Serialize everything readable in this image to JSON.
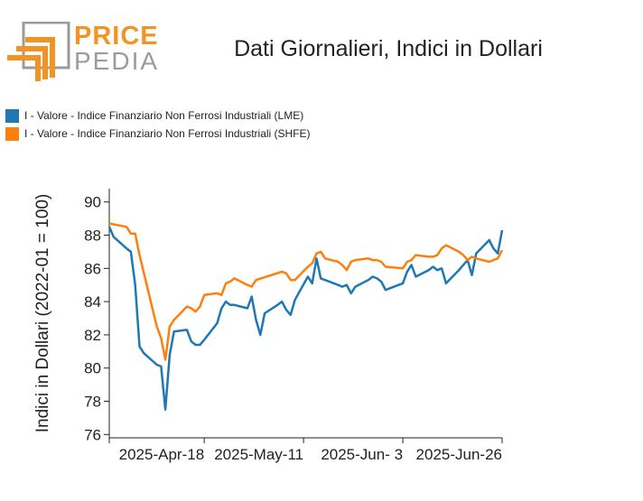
{
  "logo": {
    "line1": "PRICE",
    "line2": "PEDIA",
    "primary_color": "#f39324",
    "secondary_color": "#9b9b9b"
  },
  "chart_data": {
    "type": "line",
    "title": "Dati Giornalieri, Indici in Dollari",
    "ylabel": "Indici in Dollari (2022-01 = 100)",
    "xlabel": "",
    "ylim": [
      75.8,
      90.8
    ],
    "yticks": [
      76,
      78,
      80,
      82,
      84,
      86,
      88,
      90
    ],
    "xlim": [
      "2025-03-27",
      "2025-06-26"
    ],
    "xticks": [
      {
        "date": "2025-04-18",
        "label": "2025-Apr-18"
      },
      {
        "date": "2025-05-11",
        "label": "2025-May-11"
      },
      {
        "date": "2025-06-03",
        "label": "2025-Jun- 3"
      },
      {
        "date": "2025-06-26",
        "label": "2025-Jun-26"
      }
    ],
    "legend_position": "top-left",
    "series": [
      {
        "name": "I - Valore - Indice Finanziario Non Ferrosi Industriali (LME)",
        "color": "#1f77b4",
        "x": [
          "2025-03-27",
          "2025-03-28",
          "2025-03-31",
          "2025-04-01",
          "2025-04-02",
          "2025-04-03",
          "2025-04-04",
          "2025-04-07",
          "2025-04-08",
          "2025-04-09",
          "2025-04-10",
          "2025-04-11",
          "2025-04-14",
          "2025-04-15",
          "2025-04-16",
          "2025-04-17",
          "2025-04-18",
          "2025-04-21",
          "2025-04-22",
          "2025-04-23",
          "2025-04-24",
          "2025-04-25",
          "2025-04-28",
          "2025-04-29",
          "2025-04-30",
          "2025-05-01",
          "2025-05-02",
          "2025-05-05",
          "2025-05-06",
          "2025-05-07",
          "2025-05-08",
          "2025-05-09",
          "2025-05-12",
          "2025-05-13",
          "2025-05-14",
          "2025-05-15",
          "2025-05-16",
          "2025-05-19",
          "2025-05-20",
          "2025-05-21",
          "2025-05-22",
          "2025-05-23",
          "2025-05-26",
          "2025-05-27",
          "2025-05-28",
          "2025-05-29",
          "2025-05-30",
          "2025-06-02",
          "2025-06-03",
          "2025-06-04",
          "2025-06-05",
          "2025-06-06",
          "2025-06-09",
          "2025-06-10",
          "2025-06-11",
          "2025-06-12",
          "2025-06-13",
          "2025-06-16",
          "2025-06-17",
          "2025-06-18",
          "2025-06-19",
          "2025-06-20",
          "2025-06-23",
          "2025-06-24",
          "2025-06-25",
          "2025-06-26"
        ],
        "values": [
          88.5,
          87.9,
          87.2,
          87.0,
          85.0,
          81.3,
          80.9,
          80.2,
          80.1,
          77.5,
          80.8,
          82.2,
          82.3,
          81.6,
          81.4,
          81.4,
          81.7,
          82.7,
          83.6,
          84.0,
          83.8,
          83.8,
          83.6,
          84.3,
          82.9,
          82.0,
          83.3,
          83.8,
          84.0,
          83.5,
          83.2,
          84.1,
          85.5,
          85.1,
          86.6,
          85.4,
          85.3,
          85.0,
          84.9,
          85.0,
          84.5,
          84.9,
          85.3,
          85.5,
          85.4,
          85.2,
          84.7,
          85.0,
          85.1,
          85.8,
          86.2,
          85.5,
          85.9,
          86.1,
          85.9,
          86.0,
          85.1,
          85.9,
          86.2,
          86.5,
          85.6,
          86.9,
          87.7,
          87.2,
          86.9,
          88.3
        ]
      },
      {
        "name": "I - Valore - Indice Finanziario Non Ferrosi Industriali (SHFE)",
        "color": "#ff7f0e",
        "x": [
          "2025-03-27",
          "2025-03-31",
          "2025-04-01",
          "2025-04-02",
          "2025-04-03",
          "2025-04-07",
          "2025-04-08",
          "2025-04-09",
          "2025-04-10",
          "2025-04-11",
          "2025-04-14",
          "2025-04-15",
          "2025-04-16",
          "2025-04-17",
          "2025-04-18",
          "2025-04-21",
          "2025-04-22",
          "2025-04-23",
          "2025-04-24",
          "2025-04-25",
          "2025-04-28",
          "2025-04-29",
          "2025-04-30",
          "2025-05-06",
          "2025-05-07",
          "2025-05-08",
          "2025-05-09",
          "2025-05-12",
          "2025-05-13",
          "2025-05-14",
          "2025-05-15",
          "2025-05-16",
          "2025-05-19",
          "2025-05-20",
          "2025-05-21",
          "2025-05-22",
          "2025-05-23",
          "2025-05-26",
          "2025-05-27",
          "2025-05-28",
          "2025-05-29",
          "2025-05-30",
          "2025-06-03",
          "2025-06-04",
          "2025-06-05",
          "2025-06-06",
          "2025-06-09",
          "2025-06-10",
          "2025-06-11",
          "2025-06-12",
          "2025-06-13",
          "2025-06-16",
          "2025-06-17",
          "2025-06-18",
          "2025-06-19",
          "2025-06-20",
          "2025-06-23",
          "2025-06-24",
          "2025-06-25",
          "2025-06-26"
        ],
        "values": [
          88.7,
          88.5,
          88.1,
          88.1,
          86.8,
          82.5,
          81.8,
          80.5,
          82.5,
          82.9,
          83.7,
          83.6,
          83.4,
          83.7,
          84.4,
          84.5,
          84.4,
          85.1,
          85.2,
          85.4,
          85.0,
          84.9,
          85.3,
          85.8,
          85.7,
          85.3,
          85.3,
          86.1,
          86.3,
          86.9,
          87.0,
          86.6,
          86.4,
          86.2,
          85.9,
          86.4,
          86.5,
          86.6,
          86.5,
          86.5,
          86.4,
          86.1,
          86.0,
          86.4,
          86.5,
          86.8,
          86.7,
          86.7,
          86.8,
          87.2,
          87.4,
          87.0,
          86.8,
          86.5,
          86.7,
          86.6,
          86.4,
          86.5,
          86.6,
          87.1
        ]
      }
    ]
  }
}
